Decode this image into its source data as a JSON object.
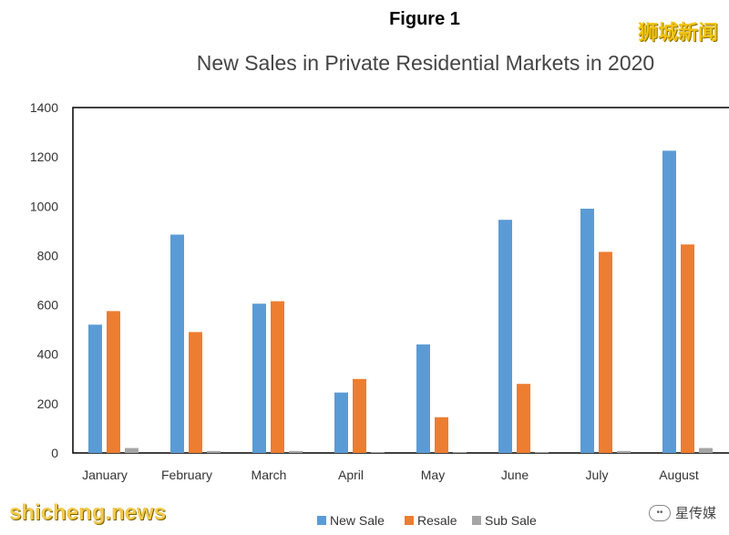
{
  "figure_label": "Figure 1",
  "watermark_top": "狮城新闻",
  "watermark_bottom": "shicheng.news",
  "brand_badge": "星传媒",
  "chart_data": {
    "type": "bar",
    "title": "New Sales in Private Residential Markets in 2020",
    "xlabel": "",
    "ylabel": "",
    "categories": [
      "January",
      "February",
      "March",
      "April",
      "May",
      "June",
      "July",
      "August"
    ],
    "series": [
      {
        "name": "New Sale",
        "color": "#5b9bd5",
        "values": [
          520,
          885,
          605,
          245,
          440,
          945,
          990,
          1225
        ]
      },
      {
        "name": "Resale",
        "color": "#ed7d31",
        "values": [
          575,
          490,
          615,
          300,
          145,
          280,
          815,
          845
        ]
      },
      {
        "name": "Sub Sale",
        "color": "#a5a5a5",
        "values": [
          20,
          8,
          8,
          3,
          3,
          3,
          8,
          20
        ]
      }
    ],
    "ylim": [
      0,
      1400
    ],
    "yticks": [
      0,
      200,
      400,
      600,
      800,
      1000,
      1200,
      1400
    ],
    "grid": false,
    "legend_position": "bottom"
  }
}
